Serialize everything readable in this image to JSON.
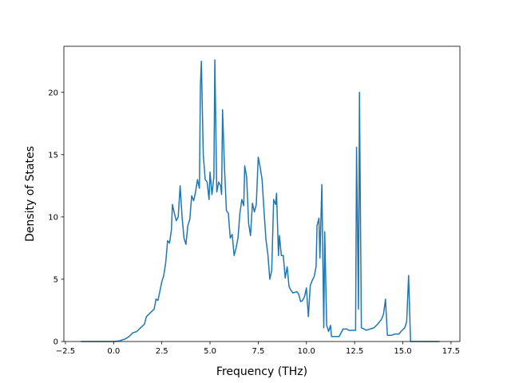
{
  "chart_data": {
    "type": "line",
    "x_label": "Frequency (THz)",
    "y_label": "Density of States",
    "x": [
      -1.7,
      0.0,
      0.3,
      0.6,
      0.8,
      1.0,
      1.2,
      1.4,
      1.6,
      1.7,
      1.9,
      2.1,
      2.2,
      2.3,
      2.5,
      2.6,
      2.7,
      2.8,
      2.9,
      3.0,
      3.05,
      3.15,
      3.25,
      3.35,
      3.45,
      3.55,
      3.65,
      3.75,
      3.85,
      3.95,
      4.05,
      4.15,
      4.25,
      4.35,
      4.45,
      4.5,
      4.55,
      4.65,
      4.75,
      4.85,
      4.95,
      5.0,
      5.1,
      5.2,
      5.25,
      5.35,
      5.45,
      5.55,
      5.6,
      5.65,
      5.75,
      5.85,
      5.95,
      6.05,
      6.15,
      6.25,
      6.35,
      6.45,
      6.55,
      6.65,
      6.75,
      6.8,
      6.9,
      7.0,
      7.1,
      7.2,
      7.3,
      7.4,
      7.5,
      7.6,
      7.7,
      7.8,
      7.9,
      8.0,
      8.1,
      8.2,
      8.3,
      8.4,
      8.45,
      8.55,
      8.6,
      8.7,
      8.8,
      8.9,
      9.0,
      9.1,
      9.2,
      9.3,
      9.5,
      9.6,
      9.7,
      9.8,
      9.9,
      10.0,
      10.1,
      10.2,
      10.3,
      10.4,
      10.5,
      10.55,
      10.65,
      10.7,
      10.8,
      10.9,
      10.95,
      11.05,
      11.15,
      11.25,
      11.3,
      11.5,
      11.7,
      11.9,
      12.1,
      12.2,
      12.4,
      12.55,
      12.6,
      12.7,
      12.75,
      12.85,
      13.0,
      13.1,
      13.3,
      13.5,
      13.7,
      13.9,
      14.0,
      14.1,
      14.2,
      14.4,
      14.6,
      14.8,
      14.9,
      15.1,
      15.2,
      15.3,
      15.4,
      16.9
    ],
    "series": [
      {
        "color": "#1f77b4",
        "values": [
          0,
          0,
          0.05,
          0.2,
          0.4,
          0.7,
          0.8,
          1.1,
          1.4,
          2.0,
          2.3,
          2.6,
          3.4,
          3.3,
          4.8,
          5.3,
          6.3,
          8.1,
          7.9,
          9.0,
          11.0,
          10.3,
          9.7,
          10.0,
          12.5,
          10.0,
          8.3,
          7.8,
          9.3,
          9.8,
          11.7,
          11.3,
          12.0,
          13.0,
          12.3,
          20.5,
          22.5,
          15.0,
          13.0,
          12.8,
          11.4,
          13.6,
          11.8,
          13.2,
          22.6,
          12.0,
          12.8,
          12.5,
          11.8,
          18.6,
          14.0,
          10.5,
          10.3,
          8.3,
          8.6,
          6.9,
          7.5,
          8.3,
          10.3,
          11.4,
          10.9,
          14.1,
          13.2,
          9.5,
          8.5,
          11.1,
          10.4,
          11.0,
          14.8,
          14.0,
          13.0,
          10.5,
          8.2,
          7.0,
          5.0,
          5.7,
          11.4,
          11.0,
          11.9,
          6.9,
          8.5,
          6.9,
          6.9,
          5.1,
          6.0,
          4.4,
          4.1,
          3.9,
          4.0,
          3.8,
          3.2,
          3.3,
          3.6,
          4.3,
          2.0,
          4.5,
          4.9,
          5.2,
          6.0,
          9.3,
          9.9,
          6.7,
          12.6,
          1.1,
          8.8,
          1.3,
          0.8,
          1.3,
          0.4,
          0.4,
          0.4,
          1.0,
          1.0,
          0.9,
          0.9,
          0.9,
          15.6,
          2.6,
          20.0,
          1.1,
          1.0,
          0.9,
          1.0,
          1.1,
          1.4,
          1.8,
          2.2,
          3.4,
          0.5,
          0.5,
          0.6,
          0.6,
          0.8,
          1.1,
          1.6,
          5.3,
          0,
          0
        ]
      }
    ],
    "xlim": [
      -2.58,
      17.96
    ],
    "ylim": [
      0,
      23.7
    ],
    "xticks": [
      {
        "value": -2.5,
        "label": "−2.5"
      },
      {
        "value": 0,
        "label": "0.0"
      },
      2.5,
      {
        "value": 5,
        "label": "5.0"
      },
      7.5,
      {
        "value": 10,
        "label": "10.0"
      },
      12.5,
      {
        "value": 15,
        "label": "15.0"
      },
      17.5
    ],
    "yticks": [
      0,
      5,
      10,
      15,
      20
    ]
  }
}
